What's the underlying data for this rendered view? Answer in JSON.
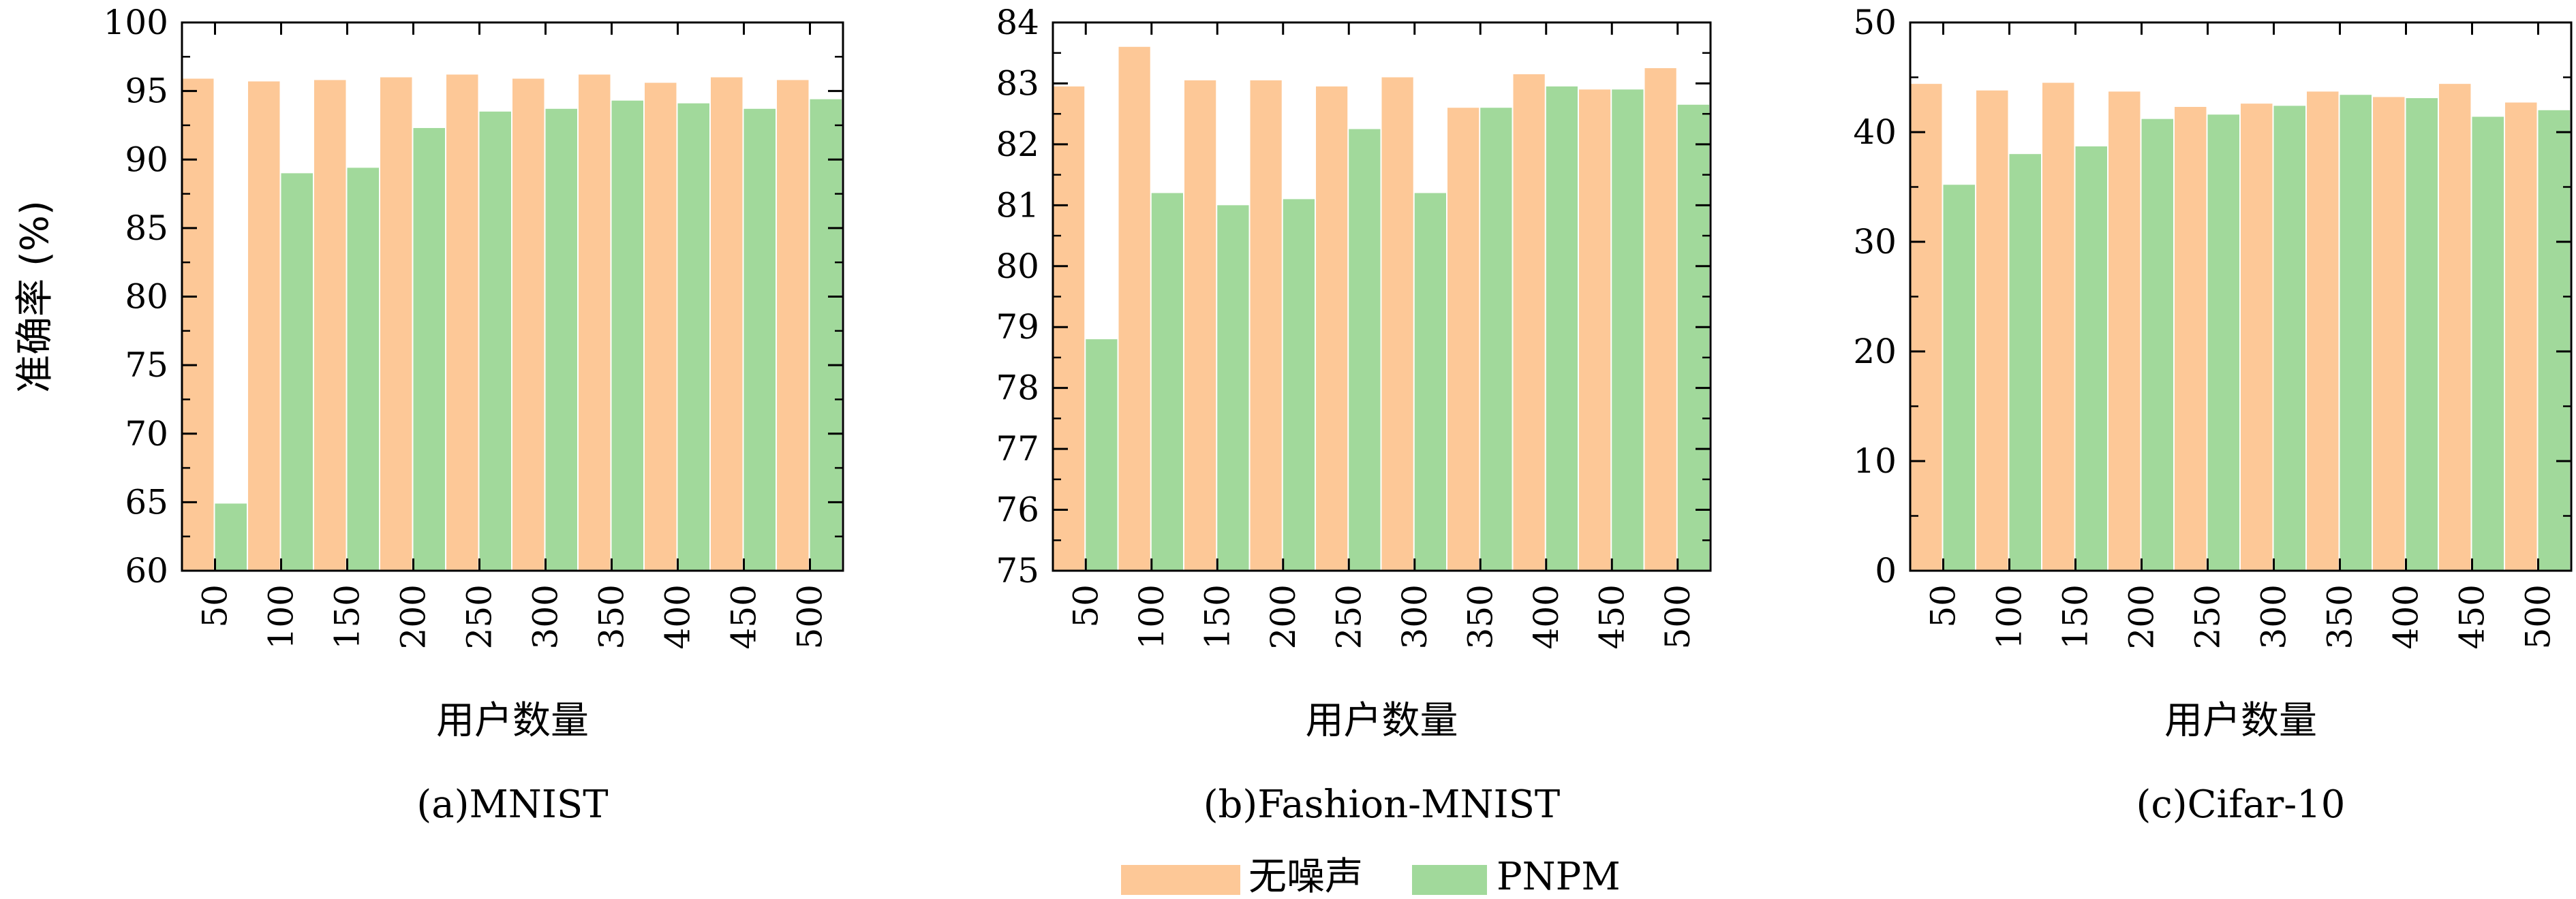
{
  "legend": {
    "items": [
      {
        "label": "无噪声",
        "color": "#fdc897"
      },
      {
        "label": "PNPM",
        "color": "#a1d99b"
      }
    ]
  },
  "chart_data": [
    {
      "type": "bar",
      "caption": "(a)MNIST",
      "xlabel": "用户数量",
      "ylabel": "准确率 (%)",
      "ylim": [
        60,
        100
      ],
      "yticks": [
        60,
        65,
        70,
        75,
        80,
        85,
        90,
        95,
        100
      ],
      "categories": [
        "50",
        "100",
        "150",
        "200",
        "250",
        "300",
        "350",
        "400",
        "450",
        "500"
      ],
      "series": [
        {
          "name": "无噪声",
          "color": "#fdc897",
          "values": [
            95.9,
            95.7,
            95.8,
            96.0,
            96.2,
            95.9,
            96.2,
            95.6,
            96.0,
            95.8
          ]
        },
        {
          "name": "PNPM",
          "color": "#a1d99b",
          "values": [
            64.9,
            89.0,
            89.4,
            92.3,
            93.5,
            93.7,
            94.3,
            94.1,
            93.7,
            94.4
          ]
        }
      ]
    },
    {
      "type": "bar",
      "caption": "(b)Fashion-MNIST",
      "xlabel": "用户数量",
      "ylabel": "",
      "ylim": [
        75,
        84
      ],
      "yticks": [
        75,
        76,
        77,
        78,
        79,
        80,
        81,
        82,
        83,
        84
      ],
      "categories": [
        "50",
        "100",
        "150",
        "200",
        "250",
        "300",
        "350",
        "400",
        "450",
        "500"
      ],
      "series": [
        {
          "name": "无噪声",
          "color": "#fdc897",
          "values": [
            82.95,
            83.6,
            83.05,
            83.05,
            82.95,
            83.1,
            82.6,
            83.15,
            82.9,
            83.25
          ]
        },
        {
          "name": "PNPM",
          "color": "#a1d99b",
          "values": [
            78.8,
            81.2,
            81.0,
            81.1,
            82.25,
            81.2,
            82.6,
            82.95,
            82.9,
            82.65
          ]
        }
      ]
    },
    {
      "type": "bar",
      "caption": "(c)Cifar-10",
      "xlabel": "用户数量",
      "ylabel": "",
      "ylim": [
        0,
        50
      ],
      "yticks": [
        0,
        10,
        20,
        30,
        40,
        50
      ],
      "categories": [
        "50",
        "100",
        "150",
        "200",
        "250",
        "300",
        "350",
        "400",
        "450",
        "500"
      ],
      "series": [
        {
          "name": "无噪声",
          "color": "#fdc897",
          "values": [
            44.4,
            43.8,
            44.5,
            43.7,
            42.3,
            42.6,
            43.7,
            43.2,
            44.4,
            42.7
          ]
        },
        {
          "name": "PNPM",
          "color": "#a1d99b",
          "values": [
            35.2,
            38.0,
            38.7,
            41.2,
            41.6,
            42.4,
            43.4,
            43.1,
            41.4,
            42.0
          ]
        }
      ]
    }
  ]
}
